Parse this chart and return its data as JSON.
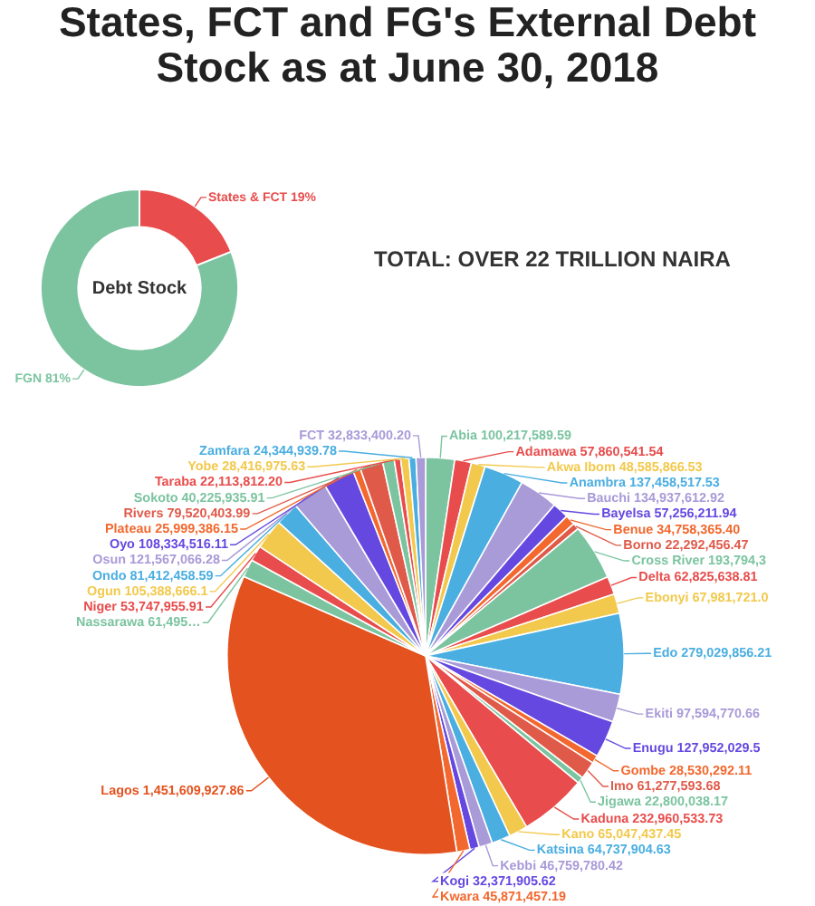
{
  "chart_data": [
    {
      "type": "donut",
      "title": "States, FCT and FG's External Debt Stock as at June 30, 2018",
      "categories": [
        "States & FCT",
        "FGN"
      ],
      "values": [
        19,
        81
      ],
      "colors": [
        "#e84c4c",
        "#7cc4a0"
      ],
      "value_labels": [
        "19%",
        "81%"
      ],
      "annotations": [
        "Debt Stock",
        "TOTAL: OVER 22 TRILLION NAIRA"
      ]
    },
    {
      "type": "pie",
      "categories": [
        "Abia",
        "Adamawa",
        "Akwa Ibom",
        "Anambra",
        "Bauchi",
        "Bayelsa",
        "Benue",
        "Borno",
        "Cross River",
        "Delta",
        "Ebonyi",
        "Edo",
        "Ekiti",
        "Enugu",
        "Gombe",
        "Imo",
        "Jigawa",
        "Kaduna",
        "Kano",
        "Katsina",
        "Kebbi",
        "Kogi",
        "Kwara",
        "Lagos",
        "Nassarawa",
        "Niger",
        "Ogun",
        "Ondo",
        "Osun",
        "Oyo",
        "Plateau",
        "Rivers",
        "Sokoto",
        "Taraba",
        "Yobe",
        "Zamfara",
        "FCT"
      ],
      "values": [
        100217589.59,
        57860541.54,
        48585866.53,
        137458517.53,
        134937612.92,
        57256211.94,
        34758365.4,
        22292456.47,
        193794300,
        62825638.81,
        67981721.0,
        279029856.21,
        97594770.66,
        127952029.5,
        28530292.11,
        61277593.68,
        22800038.17,
        232960533.73,
        65047437.45,
        64737904.63,
        46759780.42,
        32371905.62,
        45871457.19,
        1451609927.86,
        61495000,
        53747955.91,
        105388666.1,
        81412458.59,
        121567066.28,
        108334516.11,
        25999386.15,
        79520403.99,
        40225935.91,
        22113812.2,
        28416975.63,
        24344939.78,
        32833400.2
      ],
      "value_labels": [
        "100,217,589.59",
        "57,860,541.54",
        "48,585,866.53",
        "137,458,517.53",
        "134,937,612.92",
        "57,256,211.94",
        "34,758,365.40",
        "22,292,456.47",
        "193,794,3",
        "62,825,638.81",
        "67,981,721.0",
        "279,029,856.21",
        "97,594,770.66",
        "127,952,029.5",
        "28,530,292.11",
        "61,277,593.68",
        "22,800,038.17",
        "232,960,533.73",
        "65,047,437.45",
        "64,737,904.63",
        "46,759,780.42",
        "32,371,905.62",
        "45,871,457.19",
        "1,451,609,927.86",
        "61,495…",
        "53,747,955.91",
        "105,388,666.1",
        "81,412,458.59",
        "121,567,066.28",
        "108,334,516.11",
        "25,999,386.15",
        "79,520,403.99",
        "40,225,935.91",
        "22,113,812.20",
        "28,416,975.63",
        "24,344,939.78",
        "32,833,400.20"
      ],
      "colors": [
        "#7cc4a0",
        "#e84c4c",
        "#f2c94c",
        "#4aaee0",
        "#a99ad8",
        "#6548e0",
        "#f2682e",
        "#e05a4a",
        "#7cc4a0",
        "#e84c4c",
        "#f2c94c",
        "#4aaee0",
        "#a99ad8",
        "#6548e0",
        "#f2682e",
        "#e05a4a",
        "#7cc4a0",
        "#e84c4c",
        "#f2c94c",
        "#4aaee0",
        "#a99ad8",
        "#6548e0",
        "#f2682e",
        "#e4521f",
        "#7cc4a0",
        "#e84c4c",
        "#f2c94c",
        "#4aaee0",
        "#a99ad8",
        "#6548e0",
        "#f2682e",
        "#e05a4a",
        "#7cc4a0",
        "#e84c4c",
        "#f2c94c",
        "#4aaee0",
        "#a99ad8"
      ]
    }
  ]
}
